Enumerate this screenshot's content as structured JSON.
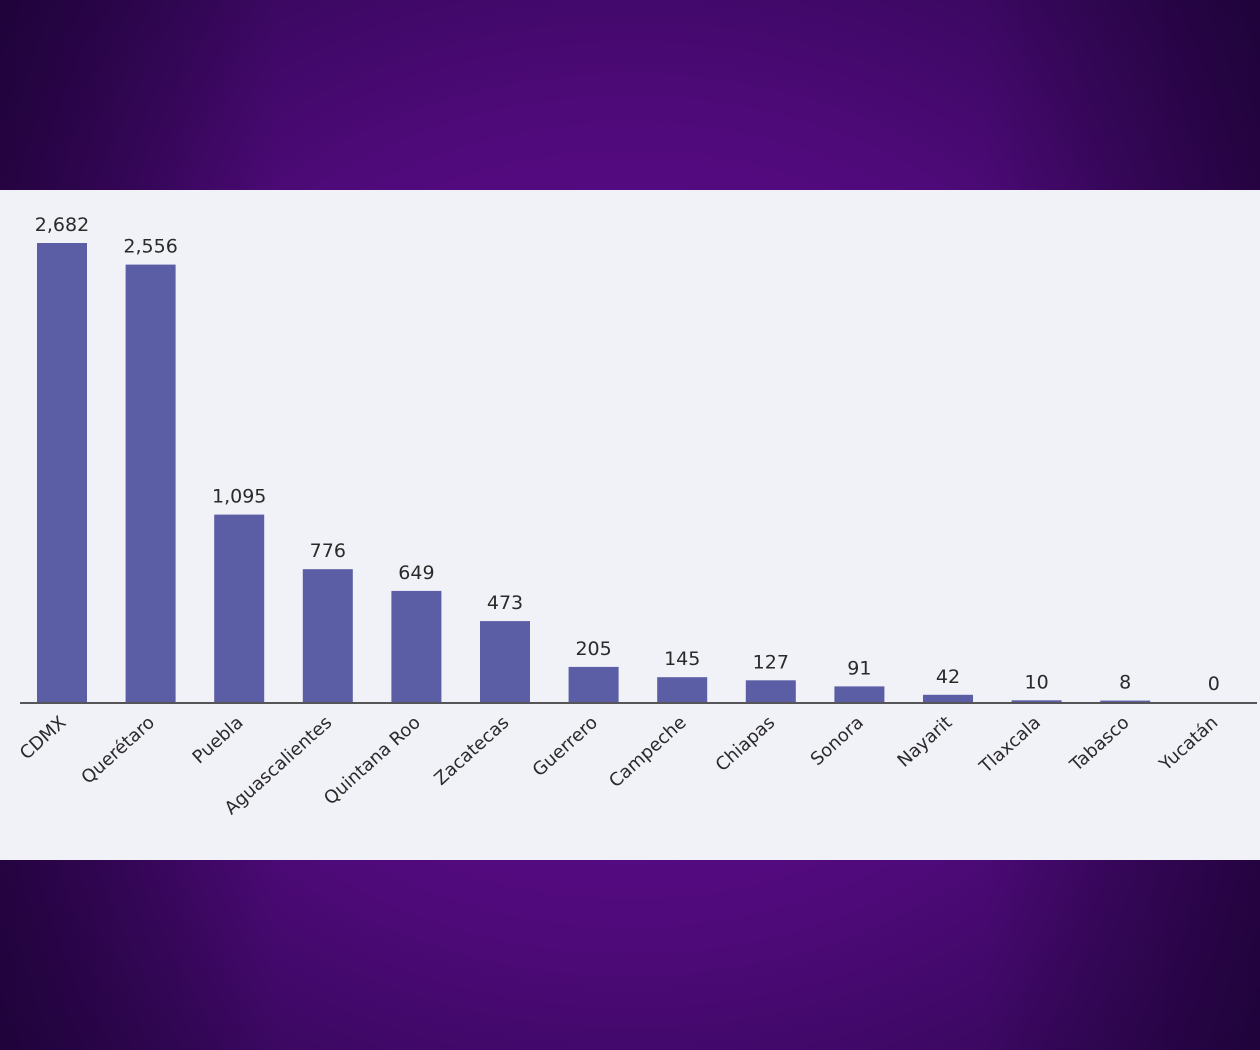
{
  "chart_data": {
    "type": "bar",
    "categories": [
      "CDMX",
      "Querétaro",
      "Puebla",
      "Aguascalientes",
      "Quintana Roo",
      "Zacatecas",
      "Guerrero",
      "Campeche",
      "Chiapas",
      "Sonora",
      "Nayarit",
      "Tlaxcala",
      "Tabasco",
      "Yucatán"
    ],
    "values": [
      2682,
      2556,
      1095,
      776,
      649,
      473,
      205,
      145,
      127,
      91,
      42,
      10,
      8,
      0
    ],
    "value_labels": [
      "2,682",
      "2,556",
      "1,095",
      "776",
      "649",
      "473",
      "205",
      "145",
      "127",
      "91",
      "42",
      "10",
      "8",
      "0"
    ],
    "ylim": [
      0,
      2682
    ],
    "bar_color": "#5b5ea5",
    "panel_color": "#f1f1f8",
    "background_color": "#5a0a86",
    "grid": false,
    "legend": "none"
  }
}
